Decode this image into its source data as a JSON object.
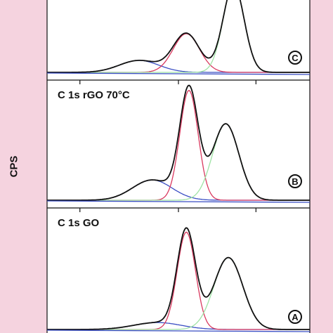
{
  "chart_data": [
    {
      "type": "line",
      "panel": "C",
      "title": "",
      "marker": "C",
      "components": [
        {
          "center": 0.35,
          "height": 0.17,
          "width": 0.075,
          "color": "#3b4fc4"
        },
        {
          "center": 0.53,
          "height": 0.55,
          "width": 0.05,
          "color": "#d9395f"
        },
        {
          "center": 0.71,
          "height": 1.25,
          "width": 0.04,
          "color": "#9fe3a5"
        }
      ],
      "envelope_color": "#111111",
      "baseline_color": "#3b4fc4"
    },
    {
      "type": "line",
      "panel": "B",
      "title": "C 1s rGO 70°C",
      "marker": "B",
      "components": [
        {
          "center": 0.4,
          "height": 0.17,
          "width": 0.075,
          "color": "#3b4fc4"
        },
        {
          "center": 0.54,
          "height": 0.92,
          "width": 0.035,
          "color": "#d9395f"
        },
        {
          "center": 0.68,
          "height": 0.64,
          "width": 0.05,
          "color": "#9fe3a5"
        }
      ],
      "envelope_color": "#111111",
      "baseline_color": "#3b4fc4"
    },
    {
      "type": "line",
      "panel": "A",
      "title": "C 1s GO",
      "marker": "A",
      "components": [
        {
          "center": 0.42,
          "height": 0.06,
          "width": 0.09,
          "color": "#3b4fc4"
        },
        {
          "center": 0.53,
          "height": 0.84,
          "width": 0.035,
          "color": "#d9395f"
        },
        {
          "center": 0.69,
          "height": 0.62,
          "width": 0.055,
          "color": "#9fe3a5"
        }
      ],
      "envelope_color": "#111111",
      "baseline_color": "#3b4fc4"
    }
  ],
  "ylabel": "CPS"
}
